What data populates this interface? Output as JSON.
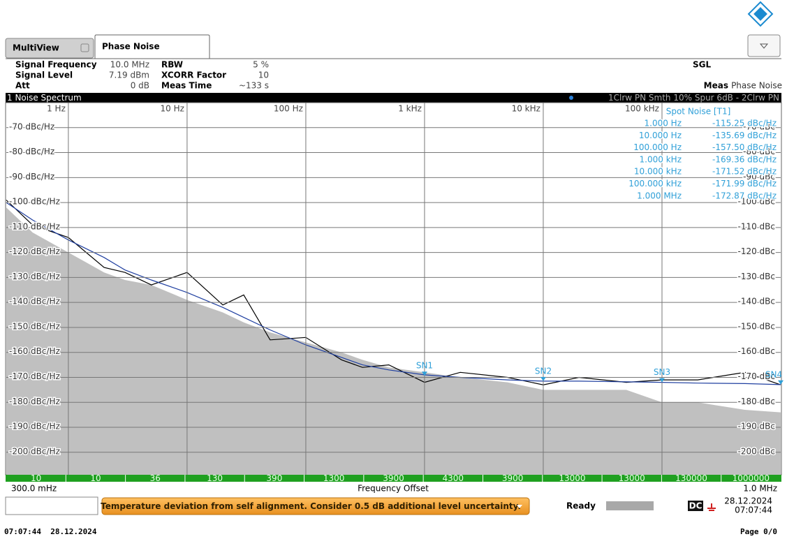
{
  "tabs": [
    "MultiView",
    "Phase Noise"
  ],
  "settings": [
    [
      "Signal Frequency",
      "10.0 MHz",
      "RBW",
      "5 %"
    ],
    [
      "Signal Level",
      "7.19 dBm",
      "XCORR Factor",
      "10"
    ],
    [
      "Att",
      "0 dB",
      "Meas Time",
      "~133 s"
    ]
  ],
  "sweep_mode": "SGL",
  "meas_label": "Meas",
  "meas_value": "Phase Noise",
  "chart_data": {
    "type": "line",
    "title": "1 Noise Spectrum",
    "trace_info": "1Clrw PN Smth 10% Spur 6dB - 2Clrw PN",
    "xlabel": "Frequency Offset",
    "x_start_label": "300.0 mHz",
    "x_end_label": "1.0 MHz",
    "xscale": "log",
    "xlim": [
      0.3,
      1000000
    ],
    "xticks": [
      {
        "value": 1,
        "label": "1 Hz"
      },
      {
        "value": 10,
        "label": "10 Hz"
      },
      {
        "value": 100,
        "label": "100 Hz"
      },
      {
        "value": 1000,
        "label": "1 kHz"
      },
      {
        "value": 10000,
        "label": "10 kHz"
      },
      {
        "value": 100000,
        "label": "100 kHz"
      }
    ],
    "ylim": [
      -209,
      -60
    ],
    "yticks": [
      {
        "value": -70,
        "label": "-70 dBc/Hz"
      },
      {
        "value": -80,
        "label": "-80 dBc/Hz"
      },
      {
        "value": -90,
        "label": "-90 dBc/Hz"
      },
      {
        "value": -100,
        "label": "-100 dBc/Hz"
      },
      {
        "value": -110,
        "label": "-110 dBc/Hz"
      },
      {
        "value": -120,
        "label": "-120 dBc/Hz"
      },
      {
        "value": -130,
        "label": "-130 dBc/Hz"
      },
      {
        "value": -140,
        "label": "-140 dBc/Hz"
      },
      {
        "value": -150,
        "label": "-150 dBc/Hz"
      },
      {
        "value": -160,
        "label": "-160 dBc/Hz"
      },
      {
        "value": -170,
        "label": "-170 dBc/Hz"
      },
      {
        "value": -180,
        "label": "-180 dBc/Hz"
      },
      {
        "value": -190,
        "label": "-190 dBc/Hz"
      },
      {
        "value": -200,
        "label": "-200 dBc/Hz"
      }
    ],
    "y2lim": [
      -209,
      -60
    ],
    "y2ticks": [
      {
        "value": -70,
        "label": "-70 dBc"
      },
      {
        "value": -80,
        "label": "-80 dBc"
      },
      {
        "value": -90,
        "label": "-90 dBc"
      },
      {
        "value": -100,
        "label": "-100 dBc"
      },
      {
        "value": -110,
        "label": "-110 dBc"
      },
      {
        "value": -120,
        "label": "-120 dBc"
      },
      {
        "value": -130,
        "label": "-130 dBc"
      },
      {
        "value": -140,
        "label": "-140 dBc"
      },
      {
        "value": -150,
        "label": "-150 dBc"
      },
      {
        "value": -160,
        "label": "-160 dBc"
      },
      {
        "value": -170,
        "label": "-170 dBc"
      },
      {
        "value": -180,
        "label": "-180 dBc"
      },
      {
        "value": -190,
        "label": "-190 dBc"
      },
      {
        "value": -200,
        "label": "-200 dBc"
      }
    ],
    "grid": true,
    "x": [
      0.3,
      0.5,
      1,
      2,
      3,
      5,
      10,
      20,
      30,
      50,
      100,
      200,
      300,
      500,
      1000,
      2000,
      5000,
      10000,
      20000,
      50000,
      100000,
      200000,
      500000,
      1000000
    ],
    "series": [
      {
        "color": "#c0c0c0",
        "style": "area",
        "values": [
          -102,
          -112,
          -120,
          -128,
          -131,
          -133,
          -139,
          -144,
          -148,
          -152,
          -156,
          -160,
          -163,
          -166,
          -168,
          -170,
          -172,
          -175,
          -175,
          -175,
          -180,
          -180,
          -183,
          -184
        ]
      },
      {
        "color": "#000000",
        "style": "line",
        "values": [
          -99,
          -109,
          -114,
          -126,
          -128,
          -133,
          -128,
          -141,
          -137,
          -155,
          -154,
          -163,
          -166,
          -165,
          -172,
          -168,
          -170,
          -173,
          -170,
          -172,
          -171,
          -171,
          -168,
          -173
        ]
      },
      {
        "color": "#1f3fa0",
        "style": "line",
        "values": [
          -100,
          -107,
          -115,
          -122,
          -127,
          -131,
          -136,
          -142,
          -146,
          -151,
          -157,
          -162,
          -165,
          -167,
          -169,
          -170,
          -171,
          -171.5,
          -171.5,
          -171.8,
          -172,
          -172.3,
          -172.5,
          -172.9
        ]
      }
    ],
    "markers": [
      {
        "label": "SN1",
        "x": 1000,
        "y": -169.36
      },
      {
        "label": "SN2",
        "x": 10000,
        "y": -171.52
      },
      {
        "label": "SN3",
        "x": 100000,
        "y": -171.99
      },
      {
        "label": "SN4",
        "x": 1000000,
        "y": -172.87
      }
    ],
    "averages": [
      10,
      10,
      36,
      130,
      390,
      1300,
      3900,
      4300,
      3900,
      13000,
      13000,
      130000,
      1000000
    ]
  },
  "spot_noise": {
    "title": "Spot Noise [T1]",
    "rows": [
      [
        "1.000 Hz",
        "-115.25 dBc/Hz"
      ],
      [
        "10.000 Hz",
        "-135.69 dBc/Hz"
      ],
      [
        "100.000 Hz",
        "-157.50 dBc/Hz"
      ],
      [
        "1.000 kHz",
        "-169.36 dBc/Hz"
      ],
      [
        "10.000 kHz",
        "-171.52 dBc/Hz"
      ],
      [
        "100.000 kHz",
        "-171.99 dBc/Hz"
      ],
      [
        "1.000 MHz",
        "-172.87 dBc/Hz"
      ]
    ]
  },
  "status": {
    "message": "Temperature deviation from self alignment. Consider 0.5 dB additional level uncertainty.",
    "state": "Ready",
    "dc": "DC",
    "date": "28.12.2024",
    "time": "07:07:44"
  },
  "footer": {
    "timestamp": "07:07:44  28.12.2024",
    "page": "Page 0/0"
  }
}
